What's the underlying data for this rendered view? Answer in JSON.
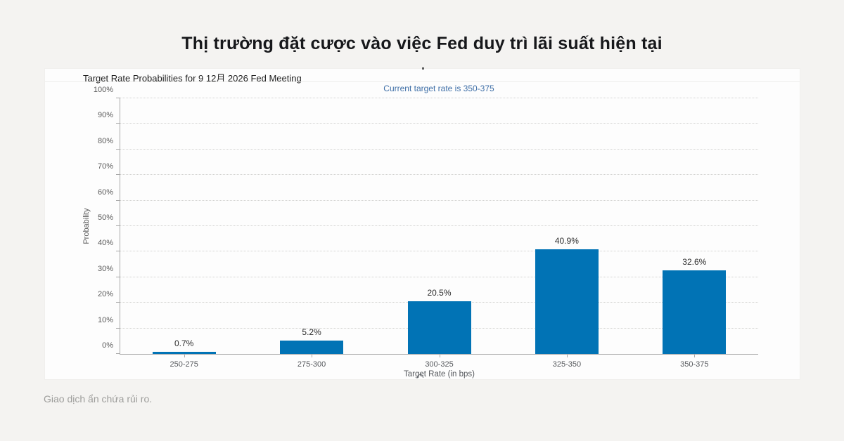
{
  "page": {
    "title": "Thị trường đặt cược vào việc Fed duy trì lãi suất hiện tại",
    "footer": "Giao dịch ẩn chứa rủi ro."
  },
  "chart_data": {
    "type": "bar",
    "title": "Target Rate Probabilities for 9 12月 2026 Fed Meeting",
    "subtitle": "Current target rate is 350-375",
    "categories": [
      "250-275",
      "275-300",
      "300-325",
      "325-350",
      "350-375"
    ],
    "values": [
      0.7,
      5.2,
      20.5,
      40.9,
      32.6
    ],
    "value_labels": [
      "0.7%",
      "5.2%",
      "20.5%",
      "40.9%",
      "32.6%"
    ],
    "xlabel": "Target Rate (in bps)",
    "ylabel": "Probability",
    "ylim": [
      0,
      100
    ],
    "ytick_values": [
      0,
      10,
      20,
      30,
      40,
      50,
      60,
      70,
      80,
      90,
      100
    ],
    "ytick_labels": [
      "0%",
      "10%",
      "20%",
      "30%",
      "40%",
      "50%",
      "60%",
      "70%",
      "80%",
      "90%",
      "100%"
    ],
    "grid": "dotted horizontal",
    "legend": "none",
    "bar_color": "#0173b5",
    "subtitle_color": "#3f6fa7"
  }
}
